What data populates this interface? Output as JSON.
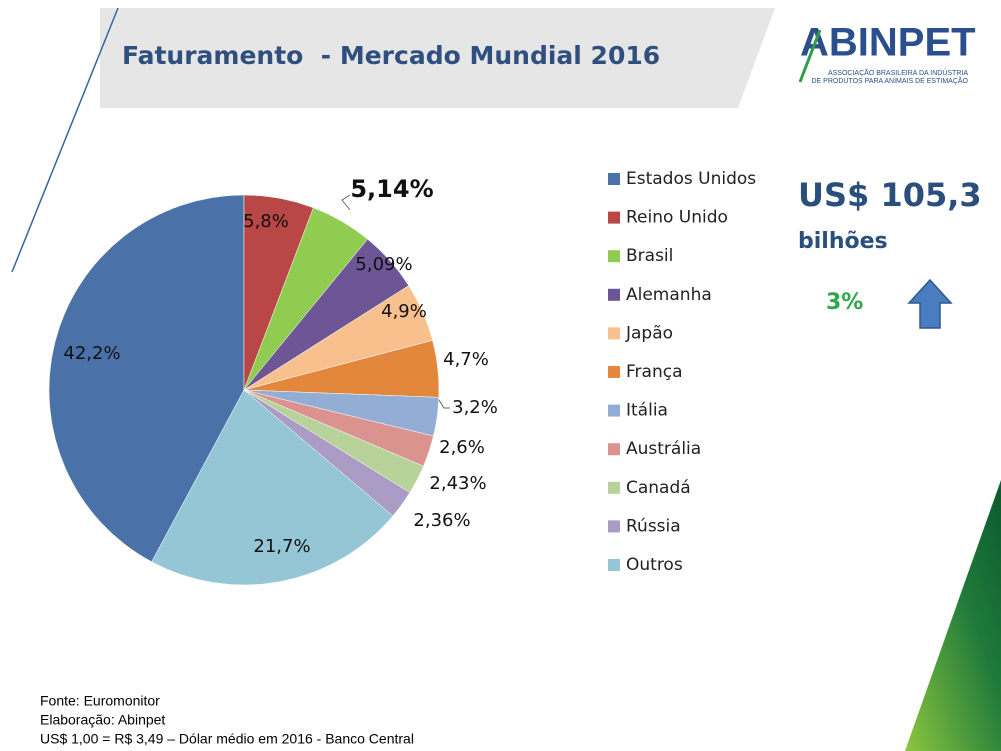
{
  "slide": {
    "title": "Faturamento  - Mercado Mundial 2016",
    "logo": {
      "name": "ABINPET",
      "line1": "ASSOCIAÇÃO BRASILEIRA DA INDÚSTRIA",
      "line2": "DE PRODUTOS PARA ANIMAIS DE ESTIMAÇÃO"
    },
    "total": "US$ 105,3",
    "unit": "bilhões",
    "growth": "3%",
    "footer": [
      "Fonte: Euromonitor",
      "Elaboração: Abinpet",
      "US$ 1,00 = R$ 3,49 – Dólar médio em 2016 - Banco Central"
    ]
  },
  "chart_data": {
    "type": "pie",
    "categories": [
      "Estados Unidos",
      "Reino Unido",
      "Brasil",
      "Alemanha",
      "Japão",
      "França",
      "Itália",
      "Austrália",
      "Canadá",
      "Rússia",
      "Outros"
    ],
    "values": [
      42.2,
      5.8,
      5.14,
      5.09,
      4.9,
      4.7,
      3.2,
      2.6,
      2.43,
      2.36,
      21.7
    ],
    "value_labels": [
      "42,2%",
      "5,8%",
      "5,14%",
      "5,09%",
      "4,9%",
      "4,7%",
      "3,2%",
      "2,6%",
      "2,43%",
      "2,36%",
      "21,7%"
    ],
    "colors": [
      "#4a72a8",
      "#b84745",
      "#8fcc4f",
      "#6e5596",
      "#f8c08c",
      "#e3873c",
      "#93aed4",
      "#db9390",
      "#b7d39a",
      "#aa9cc4",
      "#94c6d6"
    ],
    "legend": "right"
  }
}
